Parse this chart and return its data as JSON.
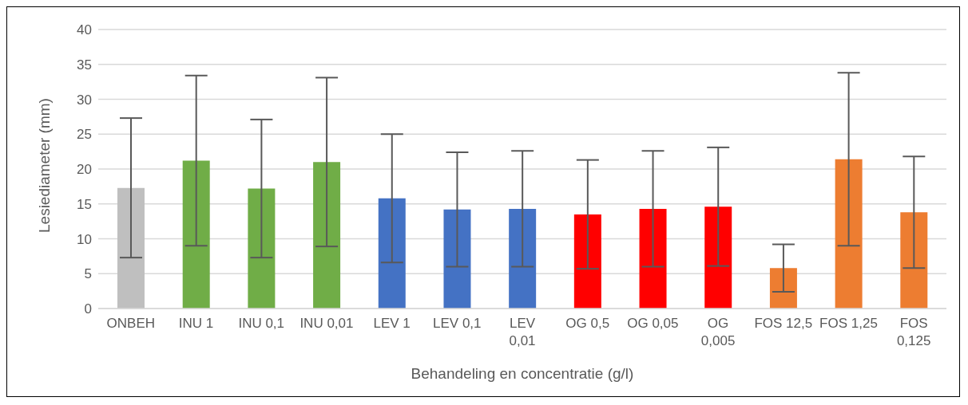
{
  "chart_data": {
    "type": "bar",
    "xlabel": "Behandeling en concentratie (g/l)",
    "ylabel": "Lesiediameter (mm)",
    "categories": [
      "ONBEH",
      "INU 1",
      "INU 0,1",
      "INU 0,01",
      "LEV 1",
      "LEV 0,1",
      "LEV 0,01",
      "OG 0,5",
      "OG 0,05",
      "OG 0,005",
      "FOS 12,5",
      "FOS 1,25",
      "FOS 0,125"
    ],
    "values": [
      17.3,
      21.2,
      17.2,
      21.0,
      15.8,
      14.2,
      14.3,
      13.5,
      14.3,
      14.6,
      5.8,
      21.4,
      13.8
    ],
    "errors": [
      10.0,
      12.2,
      9.9,
      12.1,
      9.2,
      8.2,
      8.3,
      7.8,
      8.3,
      8.5,
      3.4,
      12.4,
      8.0
    ],
    "colors": [
      "#bfbfbf",
      "#70ad47",
      "#70ad47",
      "#70ad47",
      "#4472c4",
      "#4472c4",
      "#4472c4",
      "#ff0000",
      "#ff0000",
      "#ff0000",
      "#ed7d31",
      "#ed7d31",
      "#ed7d31"
    ],
    "ylim": [
      0,
      40
    ],
    "yticks": [
      0,
      5,
      10,
      15,
      20,
      25,
      30,
      35,
      40
    ],
    "grid": "y",
    "legend": false
  }
}
